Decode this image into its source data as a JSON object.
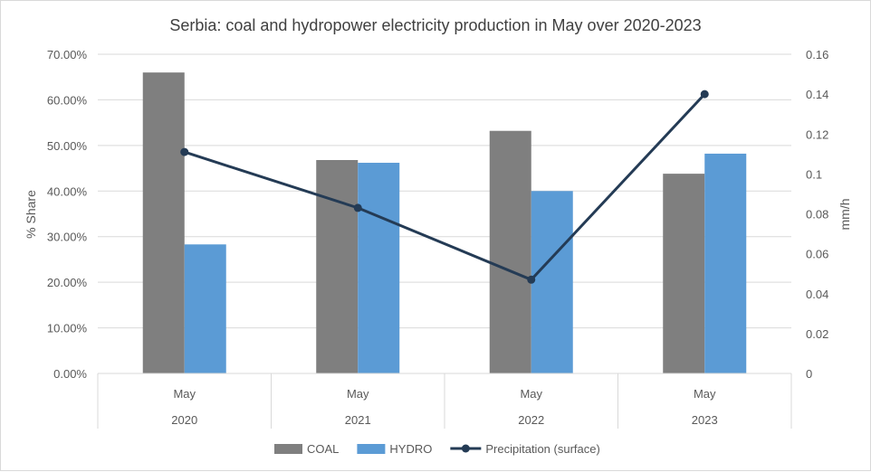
{
  "chart_data": {
    "type": "bar+line",
    "title": "Serbia: coal and hydropower electricity production in May over 2020-2023",
    "categories": [
      {
        "month": "May",
        "year": "2020"
      },
      {
        "month": "May",
        "year": "2021"
      },
      {
        "month": "May",
        "year": "2022"
      },
      {
        "month": "May",
        "year": "2023"
      }
    ],
    "series": [
      {
        "name": "COAL",
        "type": "bar",
        "axis": "left",
        "color": "#7f7f7f",
        "values": [
          66.0,
          46.8,
          53.2,
          43.8
        ]
      },
      {
        "name": "HYDRO",
        "type": "bar",
        "axis": "left",
        "color": "#5b9bd5",
        "values": [
          28.3,
          46.2,
          40.0,
          48.2
        ]
      },
      {
        "name": "Precipitation (surface)",
        "type": "line",
        "axis": "right",
        "color": "#243b55",
        "values": [
          0.111,
          0.083,
          0.047,
          0.14
        ]
      }
    ],
    "y_left": {
      "label": "% Share",
      "min": 0,
      "max": 70,
      "step": 10,
      "tick_labels": [
        "0.00%",
        "10.00%",
        "20.00%",
        "30.00%",
        "40.00%",
        "50.00%",
        "60.00%",
        "70.00%"
      ]
    },
    "y_right": {
      "label": "mm/h",
      "min": 0,
      "max": 0.16,
      "step": 0.02,
      "tick_labels": [
        "0",
        "0.02",
        "0.04",
        "0.06",
        "0.08",
        "0.1",
        "0.12",
        "0.14",
        "0.16"
      ]
    },
    "grid": true,
    "legend_position": "bottom"
  }
}
